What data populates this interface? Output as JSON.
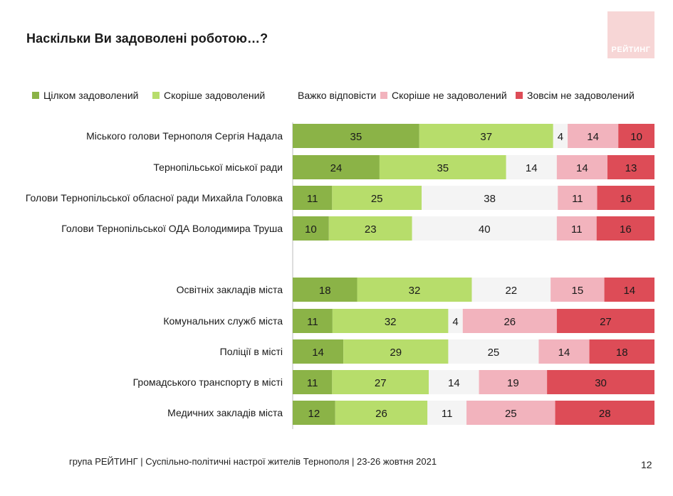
{
  "title": "Наскільки Ви задоволені роботою…?",
  "logo_text": "РЕЙТИНГ",
  "footer": "група РЕЙТИНГ | Суспільно-політичні настрої жителів Тернополя | 23-26 жовтня 2021",
  "page_number": "12",
  "chart_data": {
    "type": "bar",
    "orientation": "horizontal",
    "stacked": true,
    "unit": "%",
    "legend_position": "top",
    "categories": [
      "Міського голови Тернополя Сергія Надала",
      "Тернопільської міської ради",
      "Голови Тернопільської обласної ради Михайла Головка",
      "Голови Тернопільської ОДА Володимира Труша",
      "Освітніх закладів міста",
      "Комунальних служб міста",
      "Поліції в місті",
      "Громадського транспорту в місті",
      "Медичних закладів міста"
    ],
    "series": [
      {
        "name": "Цілком задоволений",
        "color": "#8bb347",
        "values": [
          35,
          24,
          11,
          10,
          18,
          11,
          14,
          11,
          12
        ]
      },
      {
        "name": "Скоріше задоволений",
        "color": "#b7dd6b",
        "values": [
          37,
          35,
          25,
          23,
          32,
          32,
          29,
          27,
          26
        ]
      },
      {
        "name": "Важко відповісти",
        "color": "#f4f4f4",
        "values": [
          4,
          14,
          38,
          40,
          22,
          4,
          25,
          14,
          11
        ]
      },
      {
        "name": "Скоріше не задоволений",
        "color": "#f2b3bd",
        "values": [
          14,
          14,
          11,
          11,
          15,
          26,
          14,
          19,
          25
        ]
      },
      {
        "name": "Зовсім не задоволений",
        "color": "#dd4c57",
        "values": [
          10,
          13,
          16,
          16,
          14,
          27,
          18,
          30,
          28
        ]
      }
    ]
  }
}
